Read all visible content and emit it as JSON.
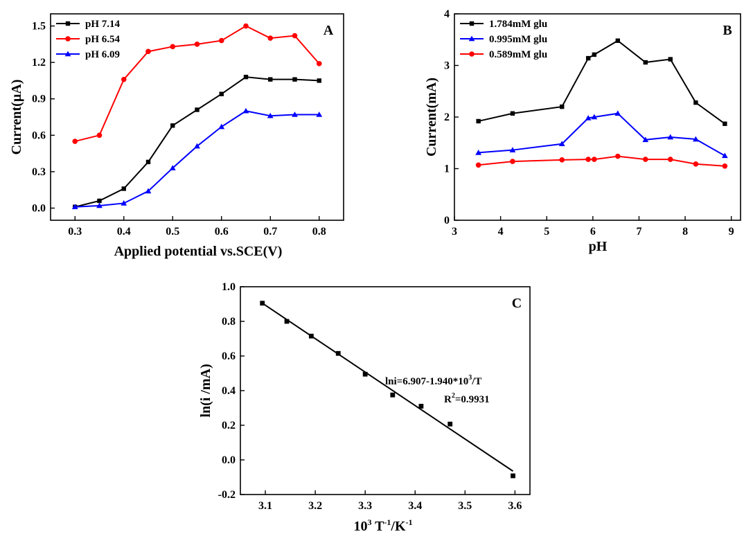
{
  "chart_data": [
    {
      "panel": "A",
      "type": "line",
      "xlabel": "Applied potential vs.SCE(V)",
      "ylabel": "Current(µA)",
      "xlim": [
        0.25,
        0.85
      ],
      "ylim": [
        -0.1,
        1.6
      ],
      "xticks": [
        "0.3",
        "0.4",
        "0.5",
        "0.6",
        "0.7",
        "0.8"
      ],
      "yticks": [
        "0.0",
        "0.3",
        "0.6",
        "0.9",
        "1.2",
        "1.5"
      ],
      "legend_position": "top-left",
      "x": [
        0.3,
        0.35,
        0.4,
        0.45,
        0.5,
        0.55,
        0.6,
        0.65,
        0.7,
        0.75,
        0.8
      ],
      "series": [
        {
          "name": "pH 7.14",
          "color": "#000000",
          "marker": "square",
          "values": [
            0.01,
            0.06,
            0.16,
            0.38,
            0.68,
            0.81,
            0.94,
            1.08,
            1.06,
            1.06,
            1.05
          ]
        },
        {
          "name": "pH 6.54",
          "color": "#ff0000",
          "marker": "circle",
          "values": [
            0.55,
            0.6,
            1.06,
            1.29,
            1.33,
            1.35,
            1.38,
            1.5,
            1.4,
            1.42,
            1.19
          ]
        },
        {
          "name": "pH 6.09",
          "color": "#0000ff",
          "marker": "triangle",
          "values": [
            0.01,
            0.02,
            0.04,
            0.14,
            0.33,
            0.51,
            0.67,
            0.8,
            0.76,
            0.77,
            0.77
          ]
        }
      ]
    },
    {
      "panel": "B",
      "type": "line",
      "xlabel": "pH",
      "ylabel": "Current(mA)",
      "xlim": [
        3,
        9.2
      ],
      "ylim": [
        0,
        4
      ],
      "xticks": [
        "3",
        "4",
        "5",
        "6",
        "7",
        "8",
        "9"
      ],
      "yticks": [
        "0",
        "1",
        "2",
        "3",
        "4"
      ],
      "legend_position": "top-left",
      "x": [
        3.52,
        4.26,
        5.33,
        5.9,
        6.03,
        6.54,
        7.14,
        7.68,
        8.23,
        8.86
      ],
      "series": [
        {
          "name": "1.784mM glu",
          "color": "#000000",
          "marker": "square",
          "values": [
            1.92,
            2.07,
            2.2,
            3.14,
            3.21,
            3.48,
            3.06,
            3.12,
            2.28,
            1.87
          ]
        },
        {
          "name": "0.995mM glu",
          "color": "#0000ff",
          "marker": "triangle",
          "values": [
            1.31,
            1.36,
            1.48,
            1.98,
            2.0,
            2.07,
            1.56,
            1.61,
            1.57,
            1.25
          ]
        },
        {
          "name": "0.589mM glu",
          "color": "#ff0000",
          "marker": "circle",
          "values": [
            1.07,
            1.14,
            1.17,
            1.18,
            1.18,
            1.24,
            1.18,
            1.18,
            1.09,
            1.05
          ]
        }
      ]
    },
    {
      "panel": "C",
      "type": "scatter",
      "xlabel_main": "10",
      "xlabel_sup1": "3",
      "xlabel_mid": " T",
      "xlabel_sup2": "-1",
      "xlabel_end": "/K",
      "xlabel_sup3": "-1",
      "ylabel": "ln(i /mA)",
      "xlim": [
        3.05,
        3.63
      ],
      "ylim": [
        -0.2,
        1.0
      ],
      "xticks": [
        "3.1",
        "3.2",
        "3.3",
        "3.4",
        "3.5",
        "3.6"
      ],
      "yticks": [
        "-0.2",
        "0.0",
        "0.2",
        "0.4",
        "0.6",
        "0.8",
        "1.0"
      ],
      "points": [
        {
          "x": 3.094,
          "y": 0.905
        },
        {
          "x": 3.143,
          "y": 0.8
        },
        {
          "x": 3.192,
          "y": 0.715
        },
        {
          "x": 3.246,
          "y": 0.615
        },
        {
          "x": 3.3,
          "y": 0.495
        },
        {
          "x": 3.355,
          "y": 0.375
        },
        {
          "x": 3.412,
          "y": 0.31
        },
        {
          "x": 3.47,
          "y": 0.207
        },
        {
          "x": 3.596,
          "y": -0.092
        }
      ],
      "fit": {
        "x_start": 3.094,
        "y_start": 0.905,
        "x_end": 3.596,
        "y_end": -0.065
      },
      "equation_main": "lni=6.907-1.940*10",
      "equation_sup": "3",
      "equation_end": "/T",
      "r2_main": "R",
      "r2_sup": "2",
      "r2_end": "=0.9931"
    }
  ]
}
